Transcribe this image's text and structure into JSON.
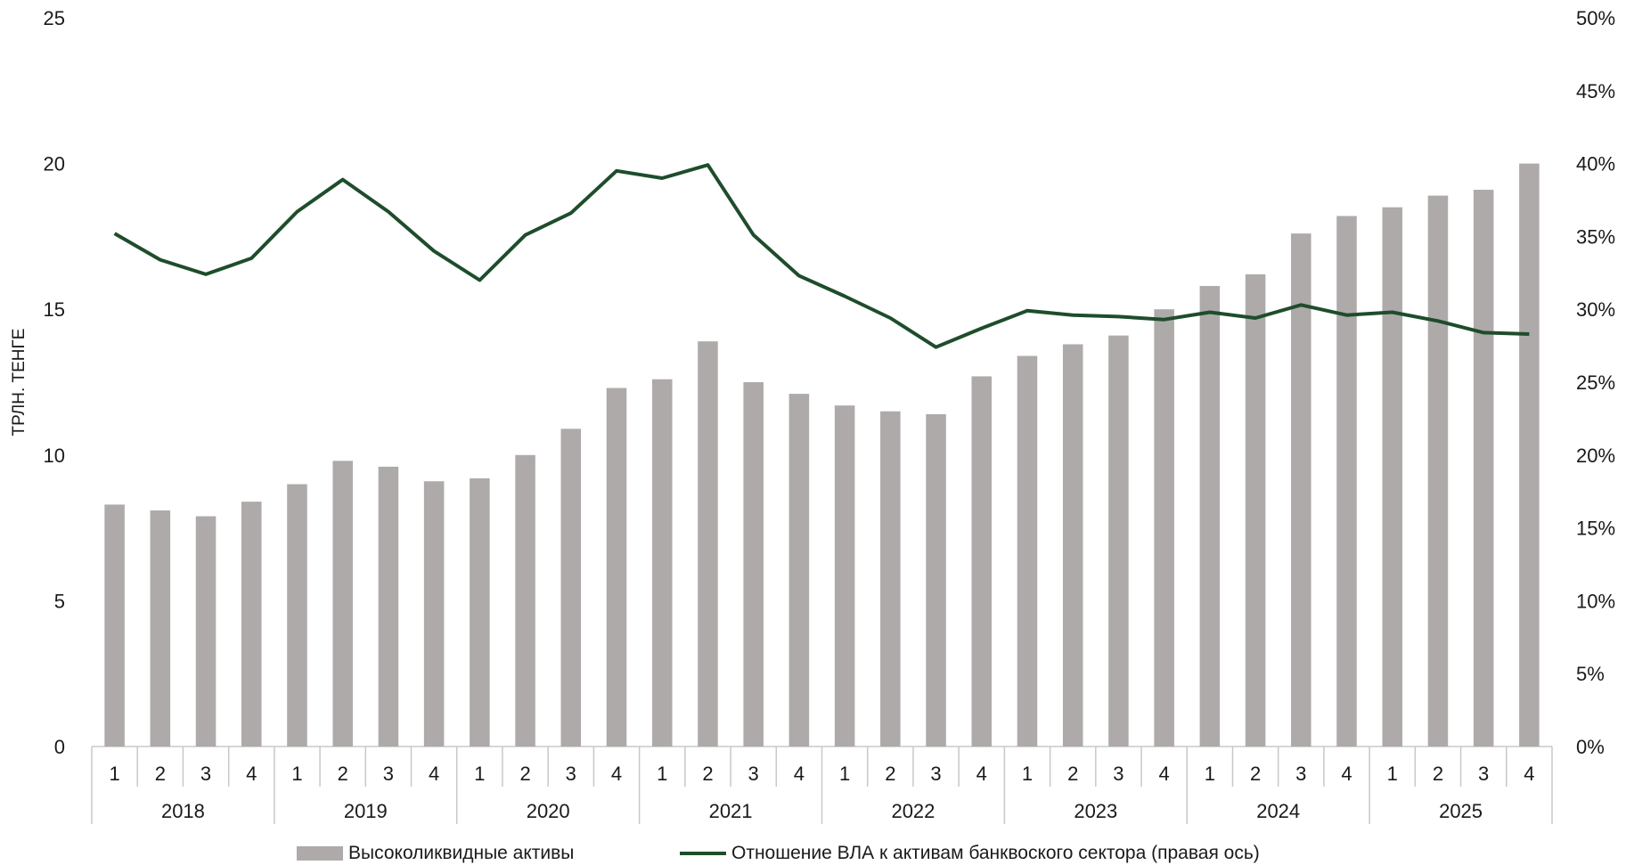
{
  "chart_data": {
    "type": "bar",
    "ylabel": "ТРЛН. ТЕНГЕ",
    "ylim": [
      0,
      25
    ],
    "y_ticks": [
      "0",
      "5",
      "10",
      "15",
      "20",
      "25"
    ],
    "y2lim": [
      0,
      50
    ],
    "y2_ticks": [
      "0%",
      "5%",
      "10%",
      "15%",
      "20%",
      "25%",
      "30%",
      "35%",
      "40%",
      "45%",
      "50%"
    ],
    "quarters": [
      "1",
      "2",
      "3",
      "4"
    ],
    "years": [
      "2018",
      "2019",
      "2020",
      "2021",
      "2022",
      "2023",
      "2024",
      "2025"
    ],
    "series": [
      {
        "name": "Высоколиквидные активы",
        "type": "bar",
        "axis": "left",
        "color": "#aeaaaa",
        "values": [
          8.3,
          8.1,
          7.9,
          8.4,
          9.0,
          9.8,
          9.6,
          9.1,
          9.2,
          10.0,
          10.9,
          12.3,
          12.6,
          13.9,
          12.5,
          12.1,
          11.7,
          11.5,
          11.4,
          12.7,
          13.4,
          13.8,
          14.1,
          15.0,
          15.8,
          16.2,
          17.6,
          18.2,
          18.5,
          18.9,
          19.1,
          20.0
        ]
      },
      {
        "name": "Отношение ВЛА к активам банквоского сектора (правая ось)",
        "type": "line",
        "axis": "right",
        "color": "#1e4d2b",
        "values": [
          35.2,
          33.4,
          32.4,
          33.5,
          36.7,
          38.9,
          36.7,
          34.0,
          32.0,
          35.1,
          36.6,
          39.5,
          39.0,
          39.9,
          35.1,
          32.3,
          30.9,
          29.4,
          27.4,
          28.7,
          29.9,
          29.6,
          29.5,
          29.3,
          29.8,
          29.4,
          30.3,
          29.6,
          29.8,
          29.2,
          28.4,
          28.3
        ]
      }
    ]
  },
  "legend": {
    "bar_label": "Высоколиквидные активы",
    "line_label": "Отношение ВЛА к активам банквоского сектора (правая ось)"
  }
}
